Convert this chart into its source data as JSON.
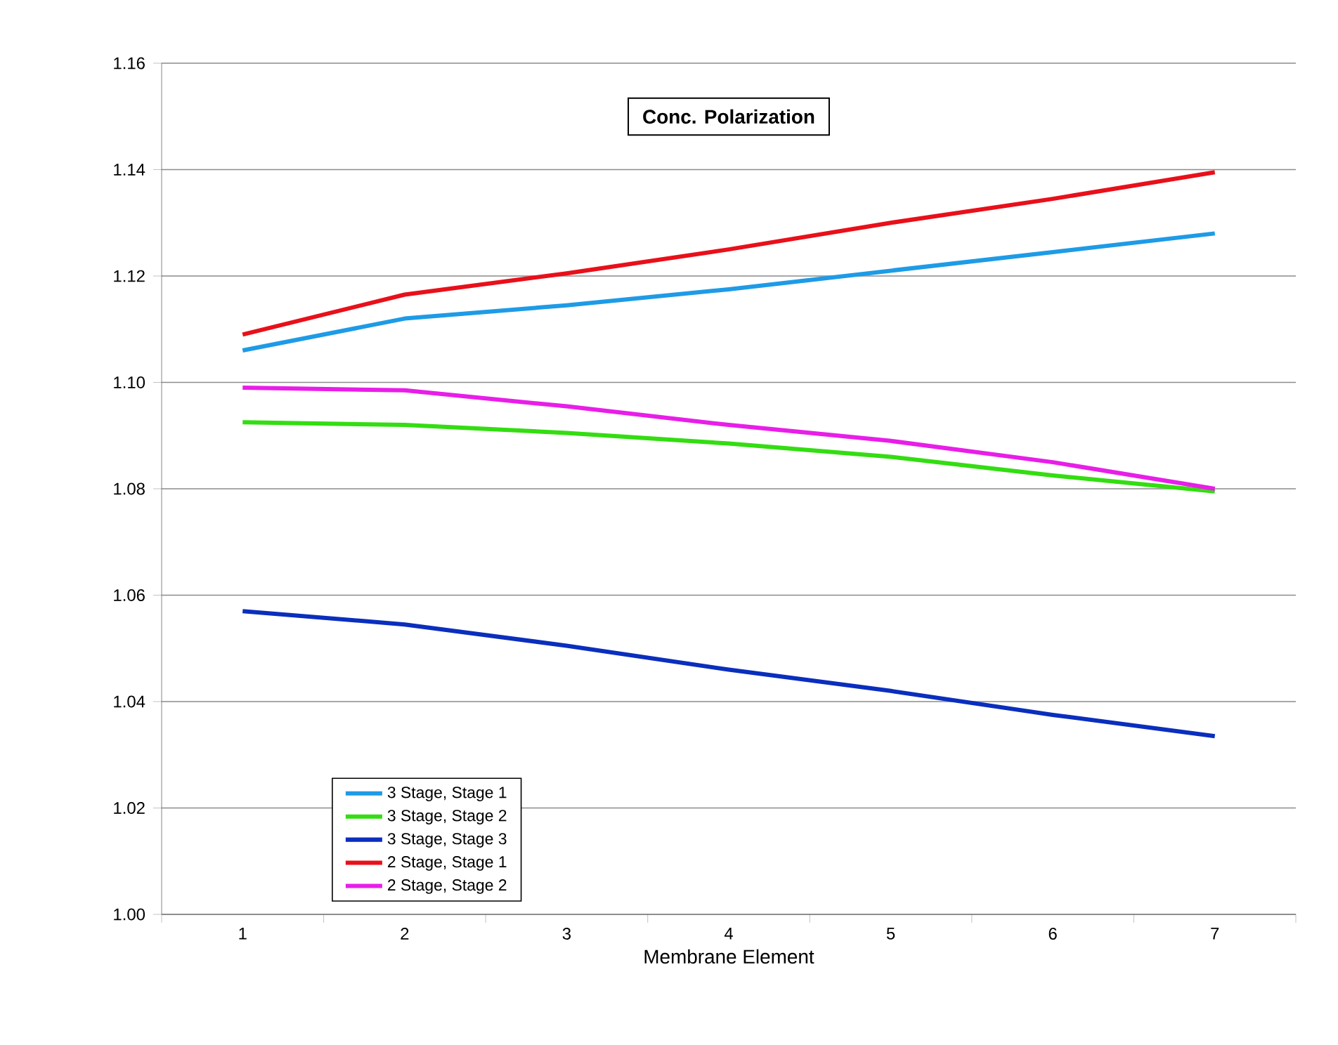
{
  "chart_data": {
    "type": "line",
    "title": "Conc. Polarization",
    "xlabel": "Membrane Element",
    "categories": [
      "1",
      "2",
      "3",
      "4",
      "5",
      "6",
      "7"
    ],
    "series": [
      {
        "name": "3 Stage, Stage 1",
        "color": "#1e9be6",
        "values": [
          1.106,
          1.112,
          1.1145,
          1.1175,
          1.121,
          1.1245,
          1.128
        ]
      },
      {
        "name": "3 Stage, Stage 2",
        "color": "#33dd11",
        "values": [
          1.0925,
          1.092,
          1.0905,
          1.0885,
          1.086,
          1.0825,
          1.0795
        ]
      },
      {
        "name": "3 Stage, Stage 3",
        "color": "#0a2ebd",
        "values": [
          1.057,
          1.0545,
          1.0505,
          1.046,
          1.042,
          1.0375,
          1.0335
        ]
      },
      {
        "name": "2 Stage, Stage 1",
        "color": "#e8101a",
        "values": [
          1.109,
          1.1165,
          1.1205,
          1.125,
          1.13,
          1.1345,
          1.1395
        ]
      },
      {
        "name": "2 Stage, Stage 2",
        "color": "#e81ee8",
        "values": [
          1.099,
          1.0985,
          1.0955,
          1.092,
          1.089,
          1.085,
          1.08
        ]
      }
    ],
    "ylim": [
      1.0,
      1.16
    ],
    "yticks": [
      {
        "value": 1.0,
        "label": "1.00"
      },
      {
        "value": 1.02,
        "label": "1.02"
      },
      {
        "value": 1.04,
        "label": "1.04"
      },
      {
        "value": 1.06,
        "label": "1.06"
      },
      {
        "value": 1.08,
        "label": "1.08"
      },
      {
        "value": 1.1,
        "label": "1.10"
      },
      {
        "value": 1.12,
        "label": "1.12"
      },
      {
        "value": 1.14,
        "label": "1.14"
      },
      {
        "value": 1.16,
        "label": "1.16"
      }
    ],
    "grid": "y",
    "legend": "bottom left",
    "marker": "none",
    "line_style": "solid"
  }
}
